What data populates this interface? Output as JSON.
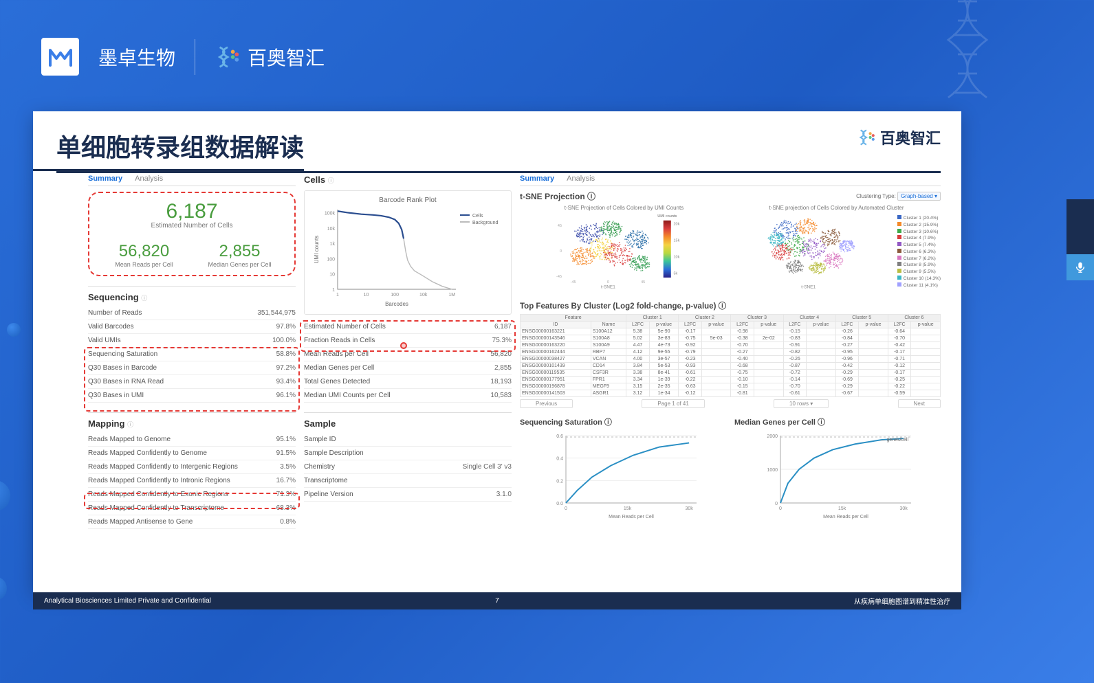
{
  "header": {
    "logo1_text": "墨卓生物",
    "logo2_text": "百奥智汇"
  },
  "slide": {
    "title": "单细胞转录组数据解读",
    "logo_text": "百奥智汇",
    "footer_left": "Analytical Biosciences Limited Private and Confidential",
    "footer_center": "7",
    "footer_right": "从疾病单细胞图谱到精准性治疗"
  },
  "tabs_left": {
    "summary": "Summary",
    "analysis": "Analysis"
  },
  "tabs_right": {
    "summary": "Summary",
    "analysis": "Analysis"
  },
  "metrics": {
    "est_cells": {
      "val": "6,187",
      "lbl": "Estimated Number of Cells"
    },
    "mean_reads": {
      "val": "56,820",
      "lbl": "Mean Reads per Cell"
    },
    "median_genes": {
      "val": "2,855",
      "lbl": "Median Genes per Cell"
    }
  },
  "sequencing": {
    "title": "Sequencing",
    "rows": [
      {
        "k": "Number of Reads",
        "v": "351,544,975"
      },
      {
        "k": "Valid Barcodes",
        "v": "97.8%"
      },
      {
        "k": "Valid UMIs",
        "v": "100.0%"
      },
      {
        "k": "Sequencing Saturation",
        "v": "58.8%"
      },
      {
        "k": "Q30 Bases in Barcode",
        "v": "97.2%"
      },
      {
        "k": "Q30 Bases in RNA Read",
        "v": "93.4%"
      },
      {
        "k": "Q30 Bases in UMI",
        "v": "96.1%"
      }
    ]
  },
  "mapping": {
    "title": "Mapping",
    "rows": [
      {
        "k": "Reads Mapped to Genome",
        "v": "95.1%"
      },
      {
        "k": "Reads Mapped Confidently to Genome",
        "v": "91.5%"
      },
      {
        "k": "Reads Mapped Confidently to Intergenic Regions",
        "v": "3.5%"
      },
      {
        "k": "Reads Mapped Confidently to Intronic Regions",
        "v": "16.7%"
      },
      {
        "k": "Reads Mapped Confidently to Exonic Regions",
        "v": "71.3%"
      },
      {
        "k": "Reads Mapped Confidently to Transcriptome",
        "v": "68.3%"
      },
      {
        "k": "Reads Mapped Antisense to Gene",
        "v": "0.8%"
      }
    ]
  },
  "cells_section": {
    "title": "Cells",
    "barcode_chart": {
      "title": "Barcode Rank Plot",
      "legend": [
        "Cells",
        "Background"
      ],
      "xlabel": "Barcodes",
      "ylabel": "UMI counts",
      "xticks": [
        "1",
        "10",
        "100",
        "10k",
        "1M"
      ],
      "yticks": [
        "1",
        "10",
        "100",
        "1k",
        "10k",
        "100k"
      ],
      "line_color": "#2a4d8f",
      "bg_line_color": "#bbbbbb",
      "data_cells": [
        [
          0,
          5.1
        ],
        [
          0.5,
          5.0
        ],
        [
          1.2,
          4.9
        ],
        [
          1.8,
          4.85
        ],
        [
          2.2,
          4.8
        ],
        [
          2.6,
          4.7
        ],
        [
          2.9,
          4.55
        ],
        [
          3.1,
          4.3
        ],
        [
          3.25,
          3.9
        ],
        [
          3.35,
          3.3
        ]
      ],
      "data_bg": [
        [
          3.35,
          3.3
        ],
        [
          3.45,
          2.5
        ],
        [
          3.55,
          1.9
        ],
        [
          3.7,
          1.5
        ],
        [
          3.9,
          1.2
        ],
        [
          4.3,
          0.9
        ],
        [
          4.8,
          0.5
        ],
        [
          5.3,
          0.2
        ],
        [
          5.8,
          0
        ]
      ]
    },
    "rows": [
      {
        "k": "Estimated Number of Cells",
        "v": "6,187"
      },
      {
        "k": "Fraction Reads in Cells",
        "v": "75.3%"
      },
      {
        "k": "Mean Reads per Cell",
        "v": "56,820"
      },
      {
        "k": "Median Genes per Cell",
        "v": "2,855"
      },
      {
        "k": "Total Genes Detected",
        "v": "18,193"
      },
      {
        "k": "Median UMI Counts per Cell",
        "v": "10,583"
      }
    ]
  },
  "sample": {
    "title": "Sample",
    "rows": [
      {
        "k": "Sample ID",
        "v": ""
      },
      {
        "k": "Sample Description",
        "v": ""
      },
      {
        "k": "Chemistry",
        "v": "Single Cell 3' v3"
      },
      {
        "k": "Transcriptome",
        "v": ""
      },
      {
        "k": "Pipeline Version",
        "v": "3.1.0"
      }
    ]
  },
  "tsne": {
    "title": "t-SNE Projection",
    "cluster_label": "Clustering Type:",
    "cluster_value": "Graph-based ▾",
    "left_title": "t-SNE Projection of Cells Colored by UMI Counts",
    "right_title": "t-SNE projection of Cells Colored by Automated Cluster",
    "axis_x": "t-SNE1",
    "axis_y": "t-SNE2",
    "colorbar_label": "UMI counts",
    "legend_items": [
      "Cluster 1 (20.4%)",
      "Cluster 2 (15.9%)",
      "Cluster 3 (10.6%)",
      "Cluster 4 (7.9%)",
      "Cluster 5 (7.4%)",
      "Cluster 6 (6.3%)",
      "Cluster 7 (6.2%)",
      "Cluster 8 (5.9%)",
      "Cluster 9 (5.5%)",
      "Cluster 10 (14.3%)",
      "Cluster 11 (4.1%)"
    ],
    "cluster_colors": [
      "#3a67c4",
      "#f48a2a",
      "#3eaa49",
      "#d83c3c",
      "#9258c4",
      "#8b5a3c",
      "#d977c0",
      "#7f7f7f",
      "#b9bd42",
      "#3ab6c4",
      "#a0a0ff"
    ]
  },
  "features": {
    "title": "Top Features By Cluster (Log2 fold-change, p-value)",
    "clusters": [
      "Cluster 1",
      "Cluster 2",
      "Cluster 3",
      "Cluster 4",
      "Cluster 5",
      "Cluster 6"
    ],
    "sub": [
      "L2FC",
      "p-value"
    ],
    "col_feature": "Feature",
    "col_id": "ID",
    "col_name": "Name",
    "rows": [
      {
        "id": "ENSG00000163221",
        "name": "S100A12",
        "c": [
          [
            "5.38",
            "5e-90"
          ],
          [
            "",
            "  "
          ],
          [
            "",
            "  "
          ],
          [
            "",
            "  "
          ],
          [
            "",
            "  "
          ],
          [
            "",
            "  "
          ]
        ]
      },
      {
        "id": "ENSG00000143546",
        "name": "S100A8",
        "c": [
          [
            "5.02",
            "3e-83"
          ],
          [
            "-0.75",
            "5e-03"
          ],
          [
            "-0.38",
            "2e-02"
          ],
          [
            "",
            "  "
          ],
          [
            "",
            "  "
          ],
          [
            "",
            "  "
          ]
        ]
      },
      {
        "id": "ENSG00000163220",
        "name": "S100A9",
        "c": [
          [
            "4.47",
            "4e-73"
          ],
          [
            "",
            "  "
          ],
          [
            "",
            "  "
          ],
          [
            "",
            "  "
          ],
          [
            "",
            "  "
          ],
          [
            "",
            "  "
          ]
        ]
      },
      {
        "id": "ENSG00000162444",
        "name": "RBP7",
        "c": [
          [
            "4.12",
            "9e-55"
          ],
          [
            "",
            "  "
          ],
          [
            "",
            "  "
          ],
          [
            "",
            "  "
          ],
          [
            "",
            "  "
          ],
          [
            "",
            "  "
          ]
        ]
      },
      {
        "id": "ENSG00000038427",
        "name": "VCAN",
        "c": [
          [
            "4.00",
            "3e-57"
          ],
          [
            "",
            "  "
          ],
          [
            "",
            "  "
          ],
          [
            "",
            "  "
          ],
          [
            "",
            "  "
          ],
          [
            "",
            "  "
          ]
        ]
      },
      {
        "id": "ENSG00000101439",
        "name": "CD14",
        "c": [
          [
            "3.84",
            "5e-53"
          ],
          [
            "",
            "  "
          ],
          [
            "",
            "  "
          ],
          [
            "",
            "  "
          ],
          [
            "",
            "  "
          ],
          [
            "",
            "  "
          ]
        ]
      },
      {
        "id": "ENSG00000119535",
        "name": "CSF3R",
        "c": [
          [
            "3.38",
            "8e-41"
          ],
          [
            "",
            "  "
          ],
          [
            "",
            "  "
          ],
          [
            "",
            "  "
          ],
          [
            "",
            "  "
          ],
          [
            "",
            "  "
          ]
        ]
      },
      {
        "id": "ENSG00000177951",
        "name": "FPR1",
        "c": [
          [
            "3.34",
            "1e-39"
          ],
          [
            "",
            "  "
          ],
          [
            "",
            "  "
          ],
          [
            "",
            "  "
          ],
          [
            "",
            "  "
          ],
          [
            "",
            "  "
          ]
        ]
      },
      {
        "id": "ENSG00000196878",
        "name": "MEGF9",
        "c": [
          [
            "3.15",
            "2e-35"
          ],
          [
            "",
            "  "
          ],
          [
            "",
            "  "
          ],
          [
            "",
            "  "
          ],
          [
            "",
            "  "
          ],
          [
            "",
            "  "
          ]
        ]
      },
      {
        "id": "ENSG00000141503",
        "name": "ASGR1",
        "c": [
          [
            "3.12",
            "1e-34"
          ],
          [
            "",
            "  "
          ],
          [
            "",
            "  "
          ],
          [
            "",
            "  "
          ],
          [
            "",
            "  "
          ],
          [
            "",
            "  "
          ]
        ]
      }
    ],
    "pager": {
      "prev": "Previous",
      "page": "Page 1 of 41",
      "rows": "10 rows ▾",
      "next": "Next"
    }
  },
  "saturation_chart": {
    "title": "Sequencing Saturation",
    "xlabel": "Mean Reads per Cell",
    "xticks": [
      "0",
      "15k",
      "30k"
    ],
    "yticks": [
      "0.0",
      "0.2",
      "0.4",
      "0.6"
    ],
    "line_color": "#2a8fc4",
    "data": [
      [
        0,
        0
      ],
      [
        3,
        0.12
      ],
      [
        7,
        0.25
      ],
      [
        12,
        0.36
      ],
      [
        18,
        0.46
      ],
      [
        25,
        0.54
      ],
      [
        33,
        0.58
      ]
    ]
  },
  "median_chart": {
    "title": "Median Genes per Cell",
    "xlabel": "Mean Reads per Cell",
    "legend": "genes/cell",
    "xticks": [
      "0",
      "15k",
      "30k"
    ],
    "yticks": [
      "0",
      "1000",
      "2000"
    ],
    "line_color": "#2a8fc4",
    "data": [
      [
        0,
        0
      ],
      [
        2,
        700
      ],
      [
        5,
        1200
      ],
      [
        9,
        1600
      ],
      [
        14,
        1900
      ],
      [
        20,
        2100
      ],
      [
        27,
        2250
      ],
      [
        33,
        2300
      ]
    ]
  }
}
